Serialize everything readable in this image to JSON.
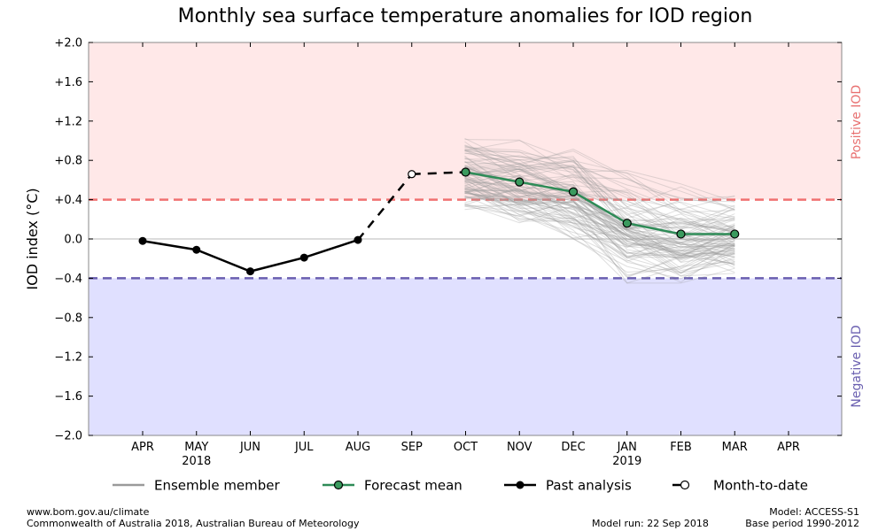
{
  "chart_data": {
    "type": "line",
    "title": "Monthly sea surface temperature anomalies for IOD region",
    "ylabel": "IOD index (°C)",
    "ylim": [
      -2.0,
      2.0
    ],
    "y_ticks": [
      2.0,
      1.6,
      1.2,
      0.8,
      0.4,
      0.0,
      -0.4,
      -0.8,
      -1.2,
      -1.6,
      -2.0
    ],
    "y_tick_labels": [
      "+2.0",
      "+1.6",
      "+1.2",
      "+0.8",
      "+0.4",
      "0.0",
      "−0.4",
      "−0.8",
      "−1.2",
      "−1.6",
      "−2.0"
    ],
    "x_ticks": [
      "APR",
      "MAY",
      "JUN",
      "JUL",
      "AUG",
      "SEP",
      "OCT",
      "NOV",
      "DEC",
      "JAN",
      "FEB",
      "MAR",
      "APR"
    ],
    "x_year_labels": [
      {
        "month_index": 1,
        "text": "2018"
      },
      {
        "month_index": 9,
        "text": "2019"
      }
    ],
    "thresholds": {
      "positive": 0.4,
      "negative": -0.4
    },
    "region_labels": {
      "positive": "Positive IOD",
      "negative": "Negative IOD"
    },
    "colors": {
      "positive_region": "#ffe8e8",
      "negative_region": "#e0e0ff",
      "positive_line": "#f07070",
      "negative_line": "#6a5fb0",
      "positive_text": "#e87070",
      "negative_text": "#6a5fb0",
      "forecast": "#2e8b57",
      "forecast_marker": "#3a9a5e",
      "ensemble": "#9a9a9a",
      "past": "#000000"
    },
    "grid": false,
    "legend_position": "bottom",
    "series": [
      {
        "name": "Past analysis",
        "x": [
          "APR",
          "MAY",
          "JUN",
          "JUL",
          "AUG"
        ],
        "values": [
          -0.02,
          -0.11,
          -0.33,
          -0.19,
          -0.01
        ]
      },
      {
        "name": "Month-to-date",
        "x": [
          "SEP"
        ],
        "values": [
          0.66
        ]
      },
      {
        "name": "Forecast mean",
        "x": [
          "OCT",
          "NOV",
          "DEC",
          "JAN",
          "FEB",
          "MAR"
        ],
        "values": [
          0.68,
          0.58,
          0.48,
          0.16,
          0.05,
          0.05
        ]
      },
      {
        "name": "Ensemble member",
        "x": [
          "OCT",
          "NOV",
          "DEC",
          "JAN",
          "FEB",
          "MAR"
        ],
        "range_low": [
          0.3,
          0.15,
          0.0,
          -0.45,
          -0.45,
          -0.35
        ],
        "range_high": [
          1.12,
          1.3,
          1.25,
          0.9,
          0.7,
          0.8
        ]
      }
    ]
  },
  "legend": [
    {
      "label": "Ensemble member",
      "style": "ensemble"
    },
    {
      "label": "Forecast mean",
      "style": "forecast"
    },
    {
      "label": "Past analysis",
      "style": "past"
    },
    {
      "label": "Month-to-date",
      "style": "mtd"
    }
  ],
  "footer": {
    "left_line1": "www.bom.gov.au/climate",
    "left_line2": "Commonwealth of Australia 2018, Australian Bureau of Meteorology",
    "model_run": "Model run: 22 Sep 2018",
    "model": "Model: ACCESS-S1",
    "base_period": "Base period 1990-2012"
  }
}
